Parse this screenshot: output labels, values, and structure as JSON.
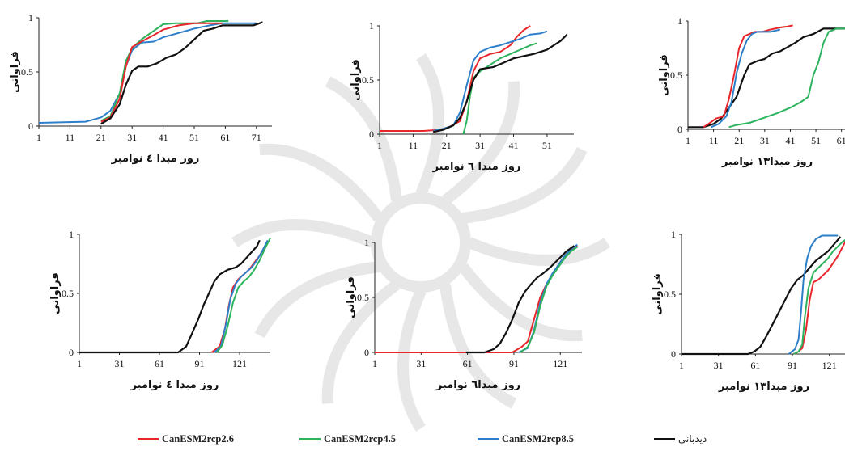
{
  "colors": {
    "observed": "#111111",
    "rcp26": "#e8262b",
    "rcp45": "#2db35d",
    "rcp85": "#2e7fc9",
    "watermark": "#d4d4d4"
  },
  "legend": [
    {
      "key": "rcp26",
      "label": "CanESM2rcp2.6"
    },
    {
      "key": "rcp45",
      "label": "CanESM2rcp4.5"
    },
    {
      "key": "rcp85",
      "label": "CanESM2rcp8.5"
    },
    {
      "key": "observed",
      "label": "دیدبانی"
    }
  ],
  "chart_data": [
    {
      "type": "line",
      "ylabel": "فراوانی",
      "xlabel": "روز مبدا ٤ نوامبر",
      "xlim": [
        1,
        76
      ],
      "ylim": [
        0,
        1
      ],
      "xticks": [
        "1",
        "11",
        "21",
        "31",
        "41",
        "51",
        "61",
        "71"
      ],
      "yticks": [
        "0",
        "0.5",
        "1"
      ],
      "series": [
        {
          "key": "rcp85",
          "x": [
            1,
            16,
            21,
            24,
            27,
            29,
            31,
            34,
            38,
            41,
            46,
            51,
            56,
            60,
            62,
            67,
            71
          ],
          "y": [
            0.03,
            0.04,
            0.08,
            0.14,
            0.3,
            0.55,
            0.7,
            0.77,
            0.78,
            0.82,
            0.86,
            0.9,
            0.93,
            0.95,
            0.95,
            0.95,
            0.95
          ]
        },
        {
          "key": "rcp45",
          "x": [
            21,
            24,
            27,
            29,
            31,
            34,
            38,
            41,
            45,
            49,
            52,
            55,
            58,
            62
          ],
          "y": [
            0.05,
            0.09,
            0.3,
            0.6,
            0.72,
            0.8,
            0.88,
            0.94,
            0.95,
            0.95,
            0.95,
            0.97,
            0.97,
            0.97
          ]
        },
        {
          "key": "rcp26",
          "x": [
            21,
            24,
            27,
            29,
            31,
            34,
            38,
            41,
            46,
            51,
            56,
            60
          ],
          "y": [
            0.04,
            0.08,
            0.25,
            0.55,
            0.73,
            0.78,
            0.84,
            0.89,
            0.93,
            0.95,
            0.95,
            0.95
          ]
        },
        {
          "key": "observed",
          "x": [
            21,
            24,
            27,
            29,
            31,
            33,
            36,
            39,
            42,
            45,
            48,
            51,
            54,
            57,
            60,
            63,
            66,
            70,
            73
          ],
          "y": [
            0.02,
            0.07,
            0.2,
            0.38,
            0.51,
            0.55,
            0.55,
            0.58,
            0.63,
            0.66,
            0.72,
            0.8,
            0.88,
            0.9,
            0.93,
            0.93,
            0.93,
            0.93,
            0.96
          ]
        }
      ]
    },
    {
      "type": "line",
      "ylabel": "فراوانی",
      "xlabel": "روز مبدا ٦ نوامبر",
      "xlim": [
        1,
        59
      ],
      "ylim": [
        0,
        1
      ],
      "xticks": [
        "1",
        "11",
        "21",
        "31",
        "41",
        "51"
      ],
      "yticks": [
        "0",
        "0.5",
        "1"
      ],
      "series": [
        {
          "key": "rcp26",
          "x": [
            1,
            14,
            19,
            22,
            25,
            27,
            29,
            31,
            34,
            37,
            40,
            42,
            44,
            46
          ],
          "y": [
            0.03,
            0.03,
            0.04,
            0.07,
            0.12,
            0.3,
            0.58,
            0.7,
            0.74,
            0.76,
            0.82,
            0.9,
            0.96,
            1.0
          ]
        },
        {
          "key": "rcp85",
          "x": [
            17,
            20,
            23,
            25,
            27,
            29,
            31,
            34,
            37,
            40,
            43,
            46,
            49,
            51
          ],
          "y": [
            0.03,
            0.05,
            0.08,
            0.2,
            0.45,
            0.68,
            0.76,
            0.8,
            0.82,
            0.85,
            0.88,
            0.92,
            0.93,
            0.95
          ]
        },
        {
          "key": "rcp45",
          "x": [
            26,
            27,
            28,
            29,
            31,
            34,
            37,
            40,
            43,
            46,
            48
          ],
          "y": [
            0.0,
            0.12,
            0.35,
            0.52,
            0.58,
            0.64,
            0.7,
            0.74,
            0.78,
            0.82,
            0.84
          ]
        },
        {
          "key": "observed",
          "x": [
            17,
            20,
            23,
            25,
            27,
            29,
            31,
            35,
            38,
            41,
            44,
            47,
            49,
            51,
            53,
            55,
            57
          ],
          "y": [
            0.02,
            0.04,
            0.08,
            0.15,
            0.3,
            0.5,
            0.6,
            0.62,
            0.66,
            0.7,
            0.72,
            0.74,
            0.76,
            0.78,
            0.82,
            0.86,
            0.92
          ]
        }
      ]
    },
    {
      "type": "line",
      "ylabel": "فراوانی",
      "xlabel": "روز مبدا١٣ نوامبر",
      "xlim": [
        1,
        63
      ],
      "ylim": [
        0,
        1
      ],
      "xticks": [
        "1",
        "11",
        "21",
        "31",
        "41",
        "51",
        "61"
      ],
      "yticks": [
        "0",
        "0.5",
        "1"
      ],
      "series": [
        {
          "key": "observed",
          "x": [
            1,
            7,
            11,
            14,
            17,
            20,
            23,
            25,
            28,
            31,
            34,
            37,
            40,
            43,
            46,
            50,
            54,
            57,
            60,
            63
          ],
          "y": [
            0.02,
            0.02,
            0.05,
            0.1,
            0.2,
            0.3,
            0.5,
            0.6,
            0.63,
            0.65,
            0.7,
            0.72,
            0.76,
            0.8,
            0.85,
            0.88,
            0.93,
            0.93,
            0.93,
            0.93
          ]
        },
        {
          "key": "rcp26",
          "x": [
            7,
            9,
            12,
            15,
            17,
            19,
            21,
            23,
            25,
            27,
            30,
            33,
            37,
            40,
            42
          ],
          "y": [
            0.02,
            0.05,
            0.1,
            0.12,
            0.28,
            0.5,
            0.75,
            0.86,
            0.88,
            0.9,
            0.9,
            0.92,
            0.94,
            0.95,
            0.96
          ]
        },
        {
          "key": "rcp85",
          "x": [
            10,
            13,
            16,
            18,
            20,
            22,
            24,
            26,
            28,
            30,
            33,
            37
          ],
          "y": [
            0.02,
            0.05,
            0.12,
            0.25,
            0.52,
            0.7,
            0.82,
            0.88,
            0.9,
            0.9,
            0.9,
            0.92
          ]
        },
        {
          "key": "rcp45",
          "x": [
            17,
            20,
            25,
            30,
            36,
            41,
            45,
            48,
            50,
            52,
            54,
            56,
            59,
            63
          ],
          "y": [
            0.02,
            0.04,
            0.06,
            0.1,
            0.15,
            0.2,
            0.25,
            0.3,
            0.5,
            0.62,
            0.8,
            0.9,
            0.93,
            0.93
          ]
        }
      ]
    },
    {
      "type": "line",
      "ylabel": "فراوانی",
      "xlabel": "روز مبدا ٤ نوامبر",
      "xlim": [
        1,
        144
      ],
      "ylim": [
        0,
        1
      ],
      "xticks": [
        "1",
        "31",
        "61",
        "91",
        "121"
      ],
      "yticks": [
        "0",
        "0.5",
        "1"
      ],
      "series": [
        {
          "key": "observed",
          "x": [
            1,
            75,
            81,
            85,
            90,
            94,
            98,
            102,
            106,
            112,
            118,
            122,
            126,
            130,
            134,
            136
          ],
          "y": [
            0.0,
            0.0,
            0.05,
            0.15,
            0.28,
            0.4,
            0.5,
            0.6,
            0.66,
            0.7,
            0.72,
            0.75,
            0.8,
            0.85,
            0.9,
            0.95
          ]
        },
        {
          "key": "rcp26",
          "x": [
            100,
            106,
            110,
            113,
            116,
            120,
            124,
            128,
            132,
            136,
            140
          ],
          "y": [
            0.0,
            0.05,
            0.2,
            0.4,
            0.55,
            0.62,
            0.66,
            0.7,
            0.76,
            0.82,
            0.9
          ]
        },
        {
          "key": "rcp85",
          "x": [
            102,
            107,
            111,
            114,
            118,
            122,
            126,
            130,
            134,
            138,
            142
          ],
          "y": [
            0.0,
            0.05,
            0.25,
            0.45,
            0.58,
            0.64,
            0.68,
            0.72,
            0.78,
            0.86,
            0.95
          ]
        },
        {
          "key": "rcp45",
          "x": [
            104,
            108,
            112,
            116,
            120,
            124,
            128,
            132,
            136,
            140,
            144
          ],
          "y": [
            0.0,
            0.06,
            0.22,
            0.42,
            0.55,
            0.6,
            0.64,
            0.7,
            0.78,
            0.88,
            0.97
          ]
        }
      ]
    },
    {
      "type": "line",
      "ylabel": "فراوانی",
      "xlabel": "روز مبدا٦ نوامبر",
      "xlim": [
        1,
        135
      ],
      "ylim": [
        0,
        1
      ],
      "xticks": [
        "1",
        "31",
        "61",
        "91",
        "121"
      ],
      "yticks": [
        "0",
        "0.5",
        "1"
      ],
      "series": [
        {
          "key": "rcp26",
          "x": [
            1,
            90,
            96,
            100,
            104,
            108,
            112,
            116,
            120,
            124,
            128,
            132
          ],
          "y": [
            0.0,
            0.0,
            0.05,
            0.1,
            0.3,
            0.5,
            0.62,
            0.7,
            0.8,
            0.88,
            0.93,
            0.97
          ]
        },
        {
          "key": "rcp85",
          "x": [
            94,
            100,
            104,
            108,
            112,
            116,
            120,
            124,
            128,
            132
          ],
          "y": [
            0.0,
            0.04,
            0.2,
            0.45,
            0.62,
            0.72,
            0.8,
            0.88,
            0.94,
            0.98
          ]
        },
        {
          "key": "rcp45",
          "x": [
            95,
            100,
            104,
            108,
            112,
            116,
            120,
            124,
            128,
            132
          ],
          "y": [
            0.0,
            0.05,
            0.18,
            0.42,
            0.6,
            0.7,
            0.78,
            0.86,
            0.92,
            0.96
          ]
        },
        {
          "key": "observed",
          "x": [
            60,
            72,
            78,
            82,
            86,
            90,
            94,
            98,
            102,
            106,
            110,
            115,
            120,
            125,
            130
          ],
          "y": [
            0.0,
            0.0,
            0.03,
            0.08,
            0.18,
            0.3,
            0.45,
            0.55,
            0.62,
            0.68,
            0.72,
            0.78,
            0.85,
            0.92,
            0.97
          ]
        }
      ]
    },
    {
      "type": "line",
      "ylabel": "فراوانی",
      "xlabel": "روز مبدا١٣ نوامبر",
      "xlim": [
        1,
        135
      ],
      "ylim": [
        0,
        1
      ],
      "xticks": [
        "1",
        "31",
        "61",
        "91",
        "121"
      ],
      "yticks": [
        "0",
        "0.5",
        "1"
      ],
      "series": [
        {
          "key": "observed",
          "x": [
            1,
            55,
            60,
            65,
            70,
            75,
            80,
            85,
            90,
            95,
            100,
            105,
            110,
            115,
            120,
            125,
            130
          ],
          "y": [
            0.0,
            0.0,
            0.02,
            0.06,
            0.15,
            0.25,
            0.35,
            0.45,
            0.55,
            0.62,
            0.66,
            0.72,
            0.78,
            0.82,
            0.86,
            0.92,
            0.98
          ]
        },
        {
          "key": "rcp26",
          "x": [
            92,
            96,
            99,
            102,
            105,
            108,
            112,
            116,
            120,
            124,
            128,
            132,
            135
          ],
          "y": [
            0.0,
            0.02,
            0.05,
            0.2,
            0.45,
            0.6,
            0.62,
            0.66,
            0.7,
            0.76,
            0.82,
            0.9,
            0.96
          ]
        },
        {
          "key": "rcp45",
          "x": [
            92,
            96,
            99,
            101,
            104,
            108,
            112,
            116,
            120,
            124,
            128,
            132,
            135
          ],
          "y": [
            0.0,
            0.02,
            0.08,
            0.3,
            0.55,
            0.68,
            0.72,
            0.76,
            0.8,
            0.86,
            0.9,
            0.94,
            0.96
          ]
        },
        {
          "key": "rcp85",
          "x": [
            88,
            93,
            96,
            98,
            100,
            103,
            106,
            110,
            115,
            120,
            125,
            128
          ],
          "y": [
            0.0,
            0.04,
            0.12,
            0.35,
            0.62,
            0.8,
            0.9,
            0.96,
            0.99,
            0.99,
            0.99,
            0.99
          ]
        }
      ]
    }
  ]
}
